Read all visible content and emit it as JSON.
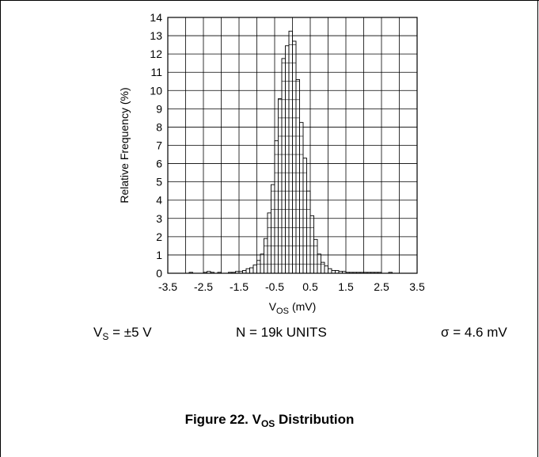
{
  "chart_data": {
    "type": "bar",
    "title": "",
    "xlabel": "V",
    "xlabel_sub": "OS",
    "xlabel_unit": "(mV)",
    "ylabel": "Relative Frequency (%)",
    "xlim": [
      -3.5,
      3.5
    ],
    "ylim": [
      0,
      14
    ],
    "x_ticks": [
      "-3.5",
      "-2.5",
      "-1.5",
      "-0.5",
      "0.5",
      "1.5",
      "2.5",
      "3.5"
    ],
    "y_ticks": [
      "0",
      "1",
      "2",
      "3",
      "4",
      "5",
      "6",
      "7",
      "8",
      "9",
      "10",
      "11",
      "12",
      "13",
      "14"
    ],
    "x_tick_values": [
      -3.5,
      -2.5,
      -1.5,
      -0.5,
      0.5,
      1.5,
      2.5,
      3.5
    ],
    "bin_width": 0.1,
    "bin_centers": [
      -2.85,
      -2.45,
      -2.35,
      -2.25,
      -2.05,
      -1.75,
      -1.65,
      -1.55,
      -1.45,
      -1.35,
      -1.25,
      -1.15,
      -1.05,
      -0.95,
      -0.85,
      -0.75,
      -0.65,
      -0.55,
      -0.45,
      -0.35,
      -0.25,
      -0.15,
      -0.05,
      0.05,
      0.15,
      0.25,
      0.35,
      0.45,
      0.55,
      0.65,
      0.75,
      0.85,
      0.95,
      1.05,
      1.15,
      1.25,
      1.35,
      1.45,
      1.55,
      1.65,
      1.75,
      1.85,
      1.95,
      2.05,
      2.15,
      2.25,
      2.35,
      2.45,
      2.75
    ],
    "values": [
      0.05,
      0.05,
      0.1,
      0.05,
      0.05,
      0.05,
      0.05,
      0.1,
      0.1,
      0.15,
      0.25,
      0.3,
      0.45,
      0.7,
      1.05,
      1.9,
      3.3,
      4.85,
      7.25,
      9.55,
      11.75,
      12.45,
      13.25,
      12.7,
      10.6,
      8.25,
      6.3,
      4.5,
      3.15,
      1.85,
      1.05,
      0.6,
      0.4,
      0.25,
      0.15,
      0.15,
      0.1,
      0.1,
      0.05,
      0.05,
      0.05,
      0.05,
      0.05,
      0.05,
      0.05,
      0.05,
      0.05,
      0.05,
      0.05
    ],
    "grid": true,
    "legend": "none"
  },
  "conditions": {
    "vs_label": "V",
    "vs_sub": "S",
    "vs_value": " = ±5 V",
    "n_units": "N = 19k UNITS",
    "sigma": "σ = 4.6 mV"
  },
  "caption": {
    "prefix": "Figure 22. V",
    "sub": "OS",
    "suffix": " Distribution"
  }
}
